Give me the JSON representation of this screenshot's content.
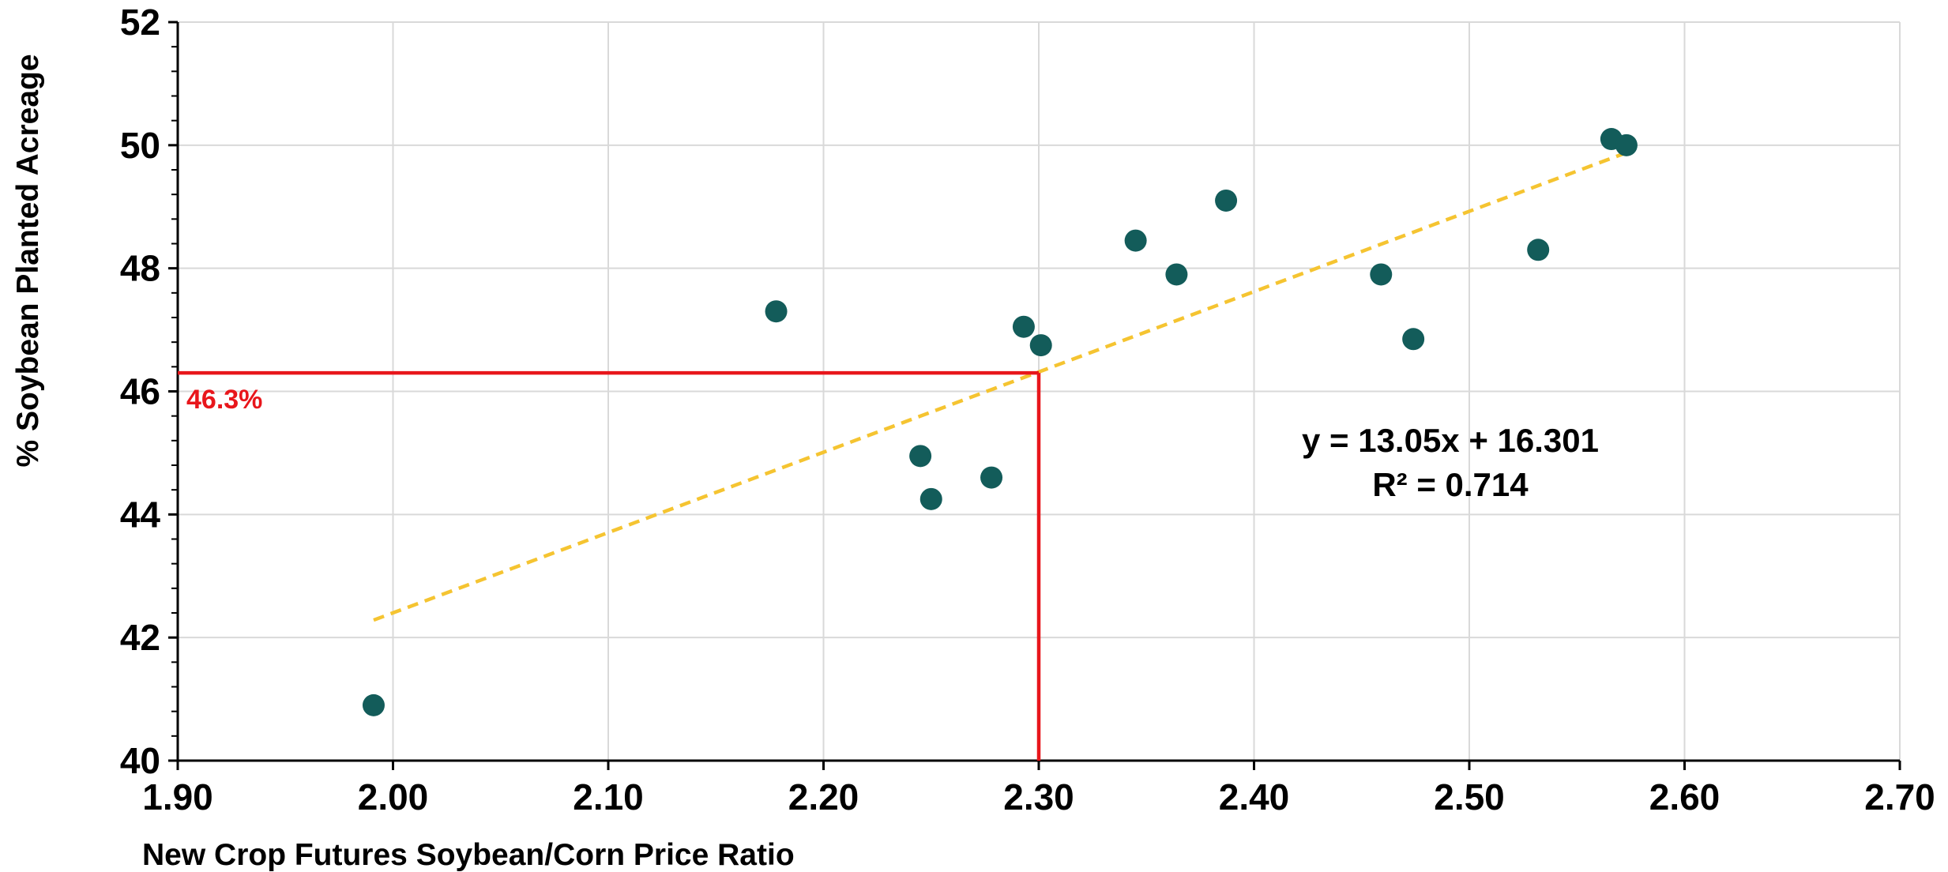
{
  "chart_data": {
    "type": "scatter",
    "xlabel": "New Crop Futures Soybean/Corn Price Ratio",
    "ylabel": "% Soybean Planted Acreage",
    "xlim": [
      1.9,
      2.7
    ],
    "ylim": [
      40,
      52
    ],
    "xticks": [
      "1.90",
      "2.00",
      "2.10",
      "2.20",
      "2.30",
      "2.40",
      "2.50",
      "2.60",
      "2.70"
    ],
    "yticks": [
      "40",
      "42",
      "44",
      "46",
      "48",
      "50",
      "52"
    ],
    "grid": true,
    "points": [
      {
        "x": 1.991,
        "y": 40.9
      },
      {
        "x": 2.178,
        "y": 47.3
      },
      {
        "x": 2.245,
        "y": 44.95
      },
      {
        "x": 2.25,
        "y": 44.25
      },
      {
        "x": 2.278,
        "y": 44.6
      },
      {
        "x": 2.293,
        "y": 47.05
      },
      {
        "x": 2.301,
        "y": 46.75
      },
      {
        "x": 2.345,
        "y": 48.45
      },
      {
        "x": 2.364,
        "y": 47.9
      },
      {
        "x": 2.387,
        "y": 49.1
      },
      {
        "x": 2.459,
        "y": 47.9
      },
      {
        "x": 2.474,
        "y": 46.85
      },
      {
        "x": 2.532,
        "y": 48.3
      },
      {
        "x": 2.566,
        "y": 50.1
      },
      {
        "x": 2.573,
        "y": 50.0
      }
    ],
    "trendline": {
      "slope": 13.05,
      "intercept": 16.301,
      "x_start": 1.991,
      "x_end": 2.573,
      "equation_label": "y = 13.05x + 16.301",
      "r2_label": "R² = 0.714"
    },
    "reference": {
      "x": 2.3,
      "y": 46.3,
      "label": "46.3%"
    },
    "colors": {
      "points": "#135c5a",
      "trendline": "#f5c431",
      "reference": "#e8161b",
      "grid": "#d9d9d9",
      "axis": "#000000"
    }
  }
}
